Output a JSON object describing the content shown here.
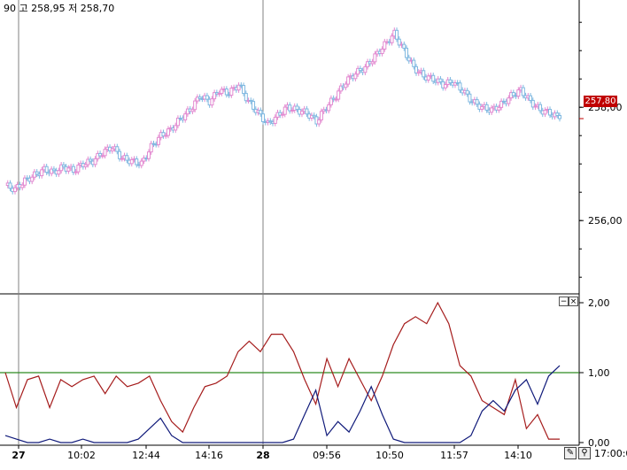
{
  "header": {
    "ohlc_text": "90 고 258,95 저 258,70"
  },
  "last_price": {
    "label": "257,80",
    "value": 257.8,
    "color": "#c00000"
  },
  "panel_buttons": {
    "minimize": "−",
    "close": "×"
  },
  "toolbar": {
    "time_label": "17:00:0",
    "pen_icon": "pen-icon",
    "zoom_icon": "magnifier-icon"
  },
  "chart_data": [
    {
      "type": "candlestick",
      "ylim": [
        254.8,
        259.8
      ],
      "yticks": [
        256.0,
        258.0
      ],
      "ytick_labels": [
        "256,00",
        "258,00"
      ],
      "up_color": "#e38ad0",
      "down_color": "#7fb8e0",
      "close_series": [
        256.62,
        256.55,
        256.7,
        256.8,
        256.9,
        256.85,
        256.95,
        256.88,
        257.0,
        257.05,
        257.2,
        257.3,
        257.1,
        257.05,
        257.0,
        257.3,
        257.5,
        257.6,
        257.8,
        257.95,
        258.2,
        258.1,
        258.3,
        258.25,
        258.4,
        258.1,
        257.9,
        257.7,
        257.85,
        258.0,
        257.95,
        257.9,
        257.75,
        258.0,
        258.2,
        258.45,
        258.6,
        258.7,
        258.9,
        259.1,
        259.3,
        259.0,
        258.7,
        258.55,
        258.5,
        258.4,
        258.45,
        258.3,
        258.1,
        258.0,
        257.95,
        258.05,
        258.2,
        258.3,
        258.1,
        257.95,
        257.9,
        257.8
      ],
      "session_dividers": [
        "27",
        "28"
      ]
    },
    {
      "type": "line",
      "ylim": [
        0,
        2.0
      ],
      "yticks": [
        0.0,
        1.0,
        2.0
      ],
      "ytick_labels": [
        "0,00",
        "1,00",
        "2,00"
      ],
      "reference_line": {
        "value": 1.0,
        "color": "#2e8b22"
      },
      "series": [
        {
          "color": "#a51c1c",
          "values": [
            1.0,
            0.5,
            0.9,
            0.95,
            0.5,
            0.9,
            0.8,
            0.9,
            0.95,
            0.7,
            0.95,
            0.8,
            0.85,
            0.95,
            0.6,
            0.3,
            0.15,
            0.5,
            0.8,
            0.85,
            0.95,
            1.3,
            1.45,
            1.3,
            1.55,
            1.55,
            1.3,
            0.9,
            0.55,
            1.2,
            0.8,
            1.2,
            0.9,
            0.6,
            0.95,
            1.4,
            1.7,
            1.8,
            1.7,
            2.0,
            1.7,
            1.1,
            0.95,
            0.6,
            0.5,
            0.4,
            0.9,
            0.2,
            0.4,
            0.05,
            0.05
          ]
        },
        {
          "color": "#101a7a",
          "values": [
            0.1,
            0.05,
            0.0,
            0.0,
            0.05,
            0.0,
            0.0,
            0.05,
            0.0,
            0.0,
            0.0,
            0.0,
            0.05,
            0.2,
            0.35,
            0.1,
            0.0,
            0.0,
            0.0,
            0.0,
            0.0,
            0.0,
            0.0,
            0.0,
            0.0,
            0.0,
            0.05,
            0.4,
            0.75,
            0.1,
            0.3,
            0.15,
            0.45,
            0.8,
            0.4,
            0.05,
            0.0,
            0.0,
            0.0,
            0.0,
            0.0,
            0.0,
            0.1,
            0.45,
            0.6,
            0.45,
            0.75,
            0.9,
            0.55,
            0.95,
            1.1
          ]
        }
      ]
    }
  ],
  "x_axis": {
    "tick_labels": [
      "27",
      "10:02",
      "12:44",
      "14:16",
      "28",
      "09:56",
      "10:50",
      "11:57",
      "14:10"
    ],
    "bold_labels": [
      "27",
      "28"
    ]
  }
}
